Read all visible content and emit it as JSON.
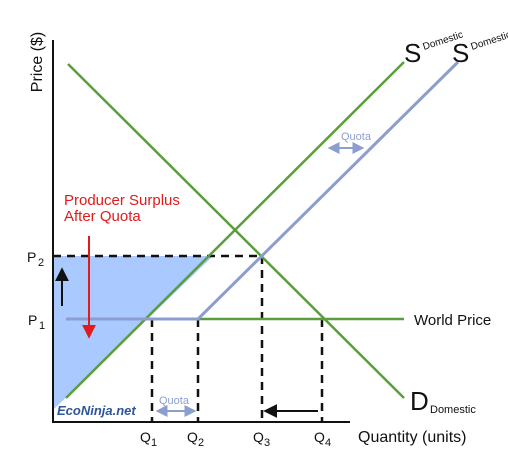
{
  "chart_data": {
    "type": "line",
    "title": "",
    "ylabel": "Price ($)",
    "xlabel": "Quantity (units)",
    "x_ticks": [
      {
        "main": "Q",
        "sub": "1",
        "x": 1
      },
      {
        "main": "Q",
        "sub": "2",
        "x": 2
      },
      {
        "main": "Q",
        "sub": "3",
        "x": 3
      },
      {
        "main": "Q",
        "sub": "4",
        "x": 4
      }
    ],
    "y_ticks": [
      {
        "main": "P",
        "sub": "1",
        "y": 1
      },
      {
        "main": "P",
        "sub": "2",
        "y": 2
      }
    ],
    "curves": {
      "supply_domestic": {
        "main": "S",
        "sub": "Domestic",
        "color": "#5a9e3c"
      },
      "supply_domestic_quota": {
        "main": "S",
        "sub": "Domestic + Quota",
        "color": "#8c9ed0"
      },
      "demand_domestic": {
        "main": "D",
        "sub": "Domestic",
        "color": "#5a9e3c"
      },
      "world_price": {
        "label": "World Price",
        "color": "#5a9e3c"
      }
    },
    "annotations": {
      "producer_surplus_line1": "Producer Surplus",
      "producer_surplus_line2": "After Quota",
      "quota_upper": "Quota",
      "quota_lower": "Quota",
      "surplus_color": "#a9c9ff",
      "annotation_color": "#e01b1b"
    },
    "watermark": "EcoNinja.net"
  }
}
